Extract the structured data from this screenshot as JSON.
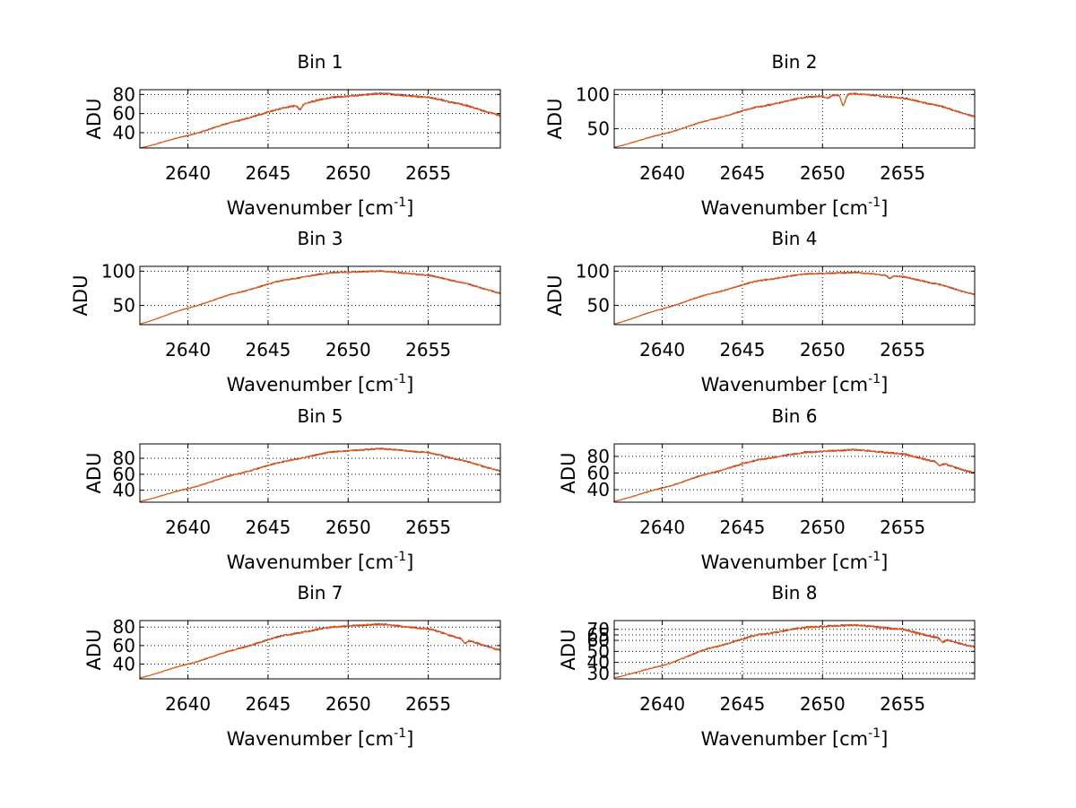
{
  "figure": {
    "background": "#ffffff",
    "series_colors": [
      "#1f1fd6",
      "#d62a0f",
      "#e4650f"
    ]
  },
  "chart_data": [
    {
      "type": "line",
      "title": "Bin 1",
      "xlabel_main": "Wavenumber [cm",
      "xlabel_sup": "-1",
      "xlabel_tail": "]",
      "ylabel": "ADU",
      "xlim": [
        2637,
        2659.5
      ],
      "ylim": [
        24,
        85
      ],
      "xticks": [
        2640,
        2645,
        2650,
        2655
      ],
      "yticks": [
        40,
        60,
        80
      ],
      "curve": {
        "x": [
          2637,
          2640,
          2643,
          2646,
          2649,
          2652,
          2655,
          2657,
          2659.5
        ],
        "y": [
          24,
          37,
          52,
          66,
          77,
          81,
          77,
          70,
          58
        ]
      },
      "noise": 2.0,
      "dips": [
        {
          "x": 2647.0,
          "depth": 5
        }
      ]
    },
    {
      "type": "line",
      "title": "Bin 2",
      "xlabel_main": "Wavenumber [cm",
      "xlabel_sup": "-1",
      "xlabel_tail": "]",
      "ylabel": "ADU",
      "xlim": [
        2637,
        2659.5
      ],
      "ylim": [
        22,
        107
      ],
      "xticks": [
        2640,
        2645,
        2650,
        2655
      ],
      "yticks": [
        50,
        100
      ],
      "curve": {
        "x": [
          2637,
          2640,
          2643,
          2646,
          2649,
          2652,
          2655,
          2657,
          2659.5
        ],
        "y": [
          23,
          42,
          63,
          82,
          96,
          101,
          95,
          85,
          68
        ]
      },
      "noise": 2.5,
      "dips": [
        {
          "x": 2651.3,
          "depth": 16
        },
        {
          "x": 2650.3,
          "depth": 4
        }
      ]
    },
    {
      "type": "line",
      "title": "Bin 3",
      "xlabel_main": "Wavenumber [cm",
      "xlabel_sup": "-1",
      "xlabel_tail": "]",
      "ylabel": "ADU",
      "xlim": [
        2637,
        2659.5
      ],
      "ylim": [
        22,
        107
      ],
      "xticks": [
        2640,
        2645,
        2650,
        2655
      ],
      "yticks": [
        50,
        100
      ],
      "curve": {
        "x": [
          2637,
          2640,
          2643,
          2646,
          2649,
          2652,
          2655,
          2657,
          2659.5
        ],
        "y": [
          23,
          46,
          68,
          87,
          98,
          100,
          94,
          84,
          68
        ]
      },
      "noise": 2.2,
      "dips": []
    },
    {
      "type": "line",
      "title": "Bin 4",
      "xlabel_main": "Wavenumber [cm",
      "xlabel_sup": "-1",
      "xlabel_tail": "]",
      "ylabel": "ADU",
      "xlim": [
        2637,
        2659.5
      ],
      "ylim": [
        22,
        107
      ],
      "xticks": [
        2640,
        2645,
        2650,
        2655
      ],
      "yticks": [
        50,
        100
      ],
      "curve": {
        "x": [
          2637,
          2640,
          2643,
          2646,
          2649,
          2652,
          2655,
          2657,
          2659.5
        ],
        "y": [
          23,
          45,
          67,
          86,
          96,
          98,
          92,
          82,
          66
        ]
      },
      "noise": 2.2,
      "dips": [
        {
          "x": 2654.2,
          "depth": 4
        }
      ]
    },
    {
      "type": "line",
      "title": "Bin 5",
      "xlabel_main": "Wavenumber [cm",
      "xlabel_sup": "-1",
      "xlabel_tail": "]",
      "ylabel": "ADU",
      "xlim": [
        2637,
        2659.5
      ],
      "ylim": [
        25,
        98
      ],
      "xticks": [
        2640,
        2645,
        2650,
        2655
      ],
      "yticks": [
        40,
        60,
        80
      ],
      "curve": {
        "x": [
          2637,
          2640,
          2643,
          2646,
          2649,
          2652,
          2655,
          2657,
          2659.5
        ],
        "y": [
          26,
          42,
          60,
          76,
          88,
          92,
          87,
          78,
          64
        ]
      },
      "noise": 2.0,
      "dips": []
    },
    {
      "type": "line",
      "title": "Bin 6",
      "xlabel_main": "Wavenumber [cm",
      "xlabel_sup": "-1",
      "xlabel_tail": "]",
      "ylabel": "ADU",
      "xlim": [
        2637,
        2659.5
      ],
      "ylim": [
        25,
        95
      ],
      "xticks": [
        2640,
        2645,
        2650,
        2655
      ],
      "yticks": [
        40,
        60,
        80
      ],
      "curve": {
        "x": [
          2637,
          2640,
          2643,
          2646,
          2649,
          2652,
          2655,
          2657,
          2659.5
        ],
        "y": [
          26,
          42,
          60,
          76,
          85,
          88,
          83,
          74,
          60
        ]
      },
      "noise": 2.2,
      "dips": [
        {
          "x": 2657.3,
          "depth": 4
        }
      ]
    },
    {
      "type": "line",
      "title": "Bin 7",
      "xlabel_main": "Wavenumber [cm",
      "xlabel_sup": "-1",
      "xlabel_tail": "]",
      "ylabel": "ADU",
      "xlim": [
        2637,
        2659.5
      ],
      "ylim": [
        24,
        87
      ],
      "xticks": [
        2640,
        2645,
        2650,
        2655
      ],
      "yticks": [
        40,
        60,
        80
      ],
      "curve": {
        "x": [
          2637,
          2640,
          2643,
          2646,
          2649,
          2652,
          2655,
          2657,
          2659.5
        ],
        "y": [
          25,
          40,
          56,
          71,
          80,
          83,
          78,
          68,
          55
        ]
      },
      "noise": 2.0,
      "dips": [
        {
          "x": 2657.3,
          "depth": 4
        }
      ]
    },
    {
      "type": "line",
      "title": "Bin 8",
      "xlabel_main": "Wavenumber [cm",
      "xlabel_sup": "-1",
      "xlabel_tail": "]",
      "ylabel": "ADU",
      "xlim": [
        2637,
        2659.5
      ],
      "ylim": [
        25,
        78
      ],
      "xticks": [
        2640,
        2645,
        2650,
        2655
      ],
      "yticks": [
        30,
        40,
        50,
        60,
        65,
        70
      ],
      "ytick_labels": [
        "30",
        "40",
        "50",
        "60",
        "65",
        "70"
      ],
      "curve": {
        "x": [
          2637,
          2640,
          2643,
          2646,
          2649,
          2652,
          2655,
          2657,
          2659.5
        ],
        "y": [
          26,
          37,
          53,
          65,
          72,
          74,
          70,
          63,
          54
        ]
      },
      "noise": 1.8,
      "dips": [
        {
          "x": 2657.5,
          "depth": 3
        }
      ]
    }
  ]
}
